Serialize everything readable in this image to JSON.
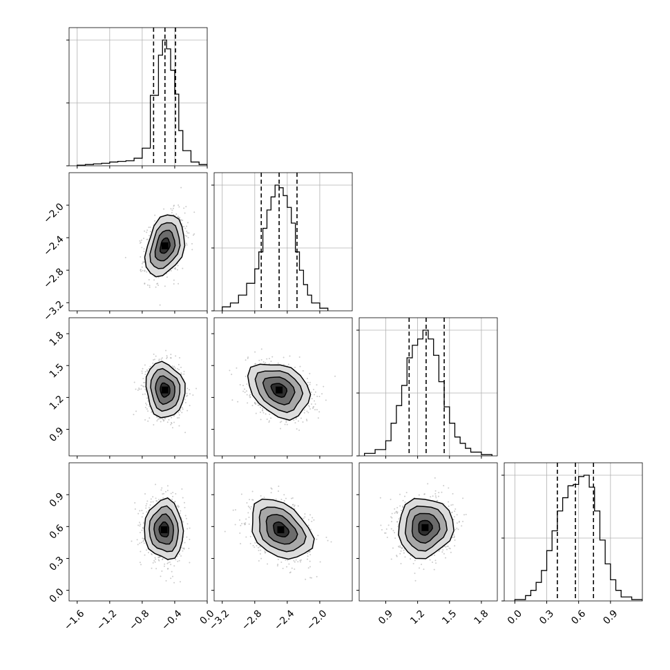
{
  "chart_data": {
    "type": "corner",
    "parameters": [
      {
        "range": [
          -1.7,
          0.0
        ],
        "ticks": [
          -1.6,
          -1.2,
          -0.8,
          -0.4,
          0.0
        ],
        "tick_labels": [
          "−1.6",
          "−1.2",
          "−0.8",
          "−0.4",
          "0.0"
        ],
        "quantiles": [
          -0.66,
          -0.52,
          -0.39
        ],
        "hist_bins": [
          -1.6,
          -1.5,
          -1.4,
          -1.3,
          -1.2,
          -1.1,
          -1.0,
          -0.9,
          -0.8,
          -0.7,
          -0.6,
          -0.55,
          -0.5,
          -0.45,
          -0.4,
          -0.35,
          -0.3,
          -0.2,
          -0.1,
          0.0
        ],
        "hist_counts": [
          0.005,
          0.01,
          0.015,
          0.02,
          0.03,
          0.035,
          0.04,
          0.06,
          0.14,
          0.56,
          0.88,
          1.0,
          0.93,
          0.76,
          0.57,
          0.28,
          0.12,
          0.03,
          0.01
        ]
      },
      {
        "range": [
          -3.3,
          -1.6
        ],
        "ticks": [
          -3.2,
          -2.8,
          -2.4,
          -2.0
        ],
        "tick_labels": [
          "−3.2",
          "−2.8",
          "−2.4",
          "−2.0"
        ],
        "quantiles": [
          -2.72,
          -2.5,
          -2.28
        ],
        "hist_bins": [
          -3.2,
          -3.1,
          -3.0,
          -2.9,
          -2.8,
          -2.75,
          -2.7,
          -2.65,
          -2.6,
          -2.55,
          -2.5,
          -2.45,
          -2.4,
          -2.35,
          -2.3,
          -2.25,
          -2.2,
          -2.15,
          -2.1,
          -2.0,
          -1.9
        ],
        "hist_counts": [
          0.03,
          0.06,
          0.12,
          0.21,
          0.32,
          0.45,
          0.63,
          0.77,
          0.87,
          0.96,
          0.94,
          0.88,
          0.79,
          0.67,
          0.45,
          0.31,
          0.2,
          0.12,
          0.06,
          0.02
        ]
      },
      {
        "range": [
          0.65,
          1.95
        ],
        "ticks": [
          0.9,
          1.2,
          1.5,
          1.8
        ],
        "tick_labels": [
          "0.9",
          "1.2",
          "1.5",
          "1.8"
        ],
        "quantiles": [
          1.12,
          1.28,
          1.45
        ],
        "hist_bins": [
          0.7,
          0.8,
          0.9,
          0.95,
          1.0,
          1.05,
          1.1,
          1.15,
          1.2,
          1.25,
          1.3,
          1.35,
          1.4,
          1.45,
          1.5,
          1.55,
          1.6,
          1.65,
          1.7,
          1.8,
          1.9
        ],
        "hist_counts": [
          0.02,
          0.05,
          0.12,
          0.26,
          0.4,
          0.56,
          0.78,
          0.88,
          0.93,
          1.0,
          0.93,
          0.8,
          0.59,
          0.39,
          0.26,
          0.15,
          0.1,
          0.06,
          0.03,
          0.01
        ]
      },
      {
        "range": [
          -0.1,
          1.2
        ],
        "ticks": [
          0.0,
          0.3,
          0.6,
          0.9
        ],
        "tick_labels": [
          "0.0",
          "0.3",
          "0.6",
          "0.9"
        ],
        "quantiles": [
          0.4,
          0.57,
          0.74
        ],
        "hist_bins": [
          0.0,
          0.1,
          0.15,
          0.2,
          0.25,
          0.3,
          0.35,
          0.4,
          0.45,
          0.5,
          0.55,
          0.6,
          0.65,
          0.7,
          0.75,
          0.8,
          0.85,
          0.9,
          0.95,
          1.0,
          1.1,
          1.2
        ],
        "hist_counts": [
          0.01,
          0.04,
          0.08,
          0.14,
          0.23,
          0.38,
          0.53,
          0.68,
          0.78,
          0.87,
          0.88,
          0.94,
          0.95,
          0.86,
          0.68,
          0.46,
          0.28,
          0.16,
          0.08,
          0.03,
          0.01
        ]
      }
    ],
    "pairs": [
      {
        "row": 1,
        "col": 0,
        "center": [
          -0.52,
          -2.5
        ],
        "sd": [
          0.12,
          0.19
        ],
        "corr": 0.3
      },
      {
        "row": 2,
        "col": 0,
        "center": [
          -0.52,
          1.27
        ],
        "sd": [
          0.12,
          0.13
        ],
        "corr": -0.1
      },
      {
        "row": 2,
        "col": 1,
        "center": [
          -2.5,
          1.27
        ],
        "sd": [
          0.19,
          0.13
        ],
        "corr": -0.3
      },
      {
        "row": 3,
        "col": 0,
        "center": [
          -0.53,
          0.57
        ],
        "sd": [
          0.12,
          0.14
        ],
        "corr": -0.05
      },
      {
        "row": 3,
        "col": 1,
        "center": [
          -2.48,
          0.57
        ],
        "sd": [
          0.19,
          0.14
        ],
        "corr": -0.35
      },
      {
        "row": 3,
        "col": 2,
        "center": [
          1.27,
          0.59
        ],
        "sd": [
          0.13,
          0.14
        ],
        "corr": 0.05
      }
    ],
    "contour_levels_sigma": [
      0.5,
      1.0,
      1.5,
      2.0
    ],
    "grid": true,
    "colors": {
      "line": "#000000",
      "scatter": "#a0a0a0",
      "grid": "#b0b0b0"
    }
  }
}
